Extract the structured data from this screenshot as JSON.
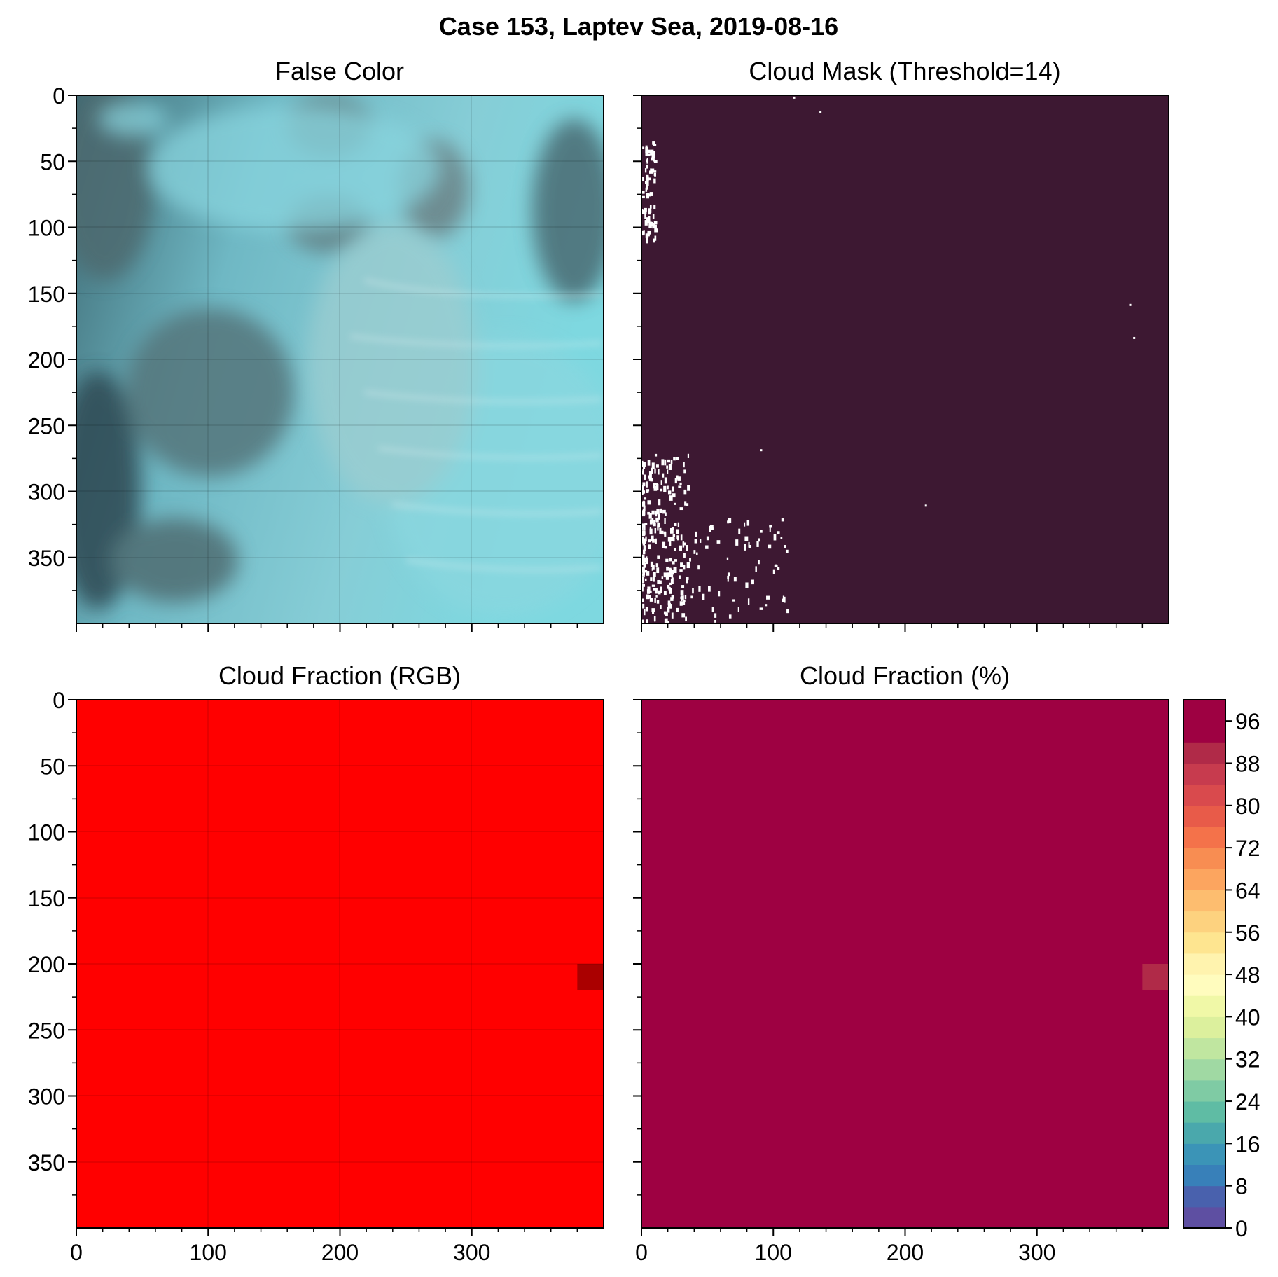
{
  "figure": {
    "suptitle": "Case 153, Laptev Sea, 2019-08-16"
  },
  "chart_data": [
    {
      "type": "image",
      "title": "False Color",
      "xlim": [
        0,
        400
      ],
      "ylim": [
        400,
        0
      ],
      "xticks": [
        0,
        100,
        200,
        300
      ],
      "yticks": [
        0,
        50,
        100,
        150,
        200,
        250,
        300,
        350
      ],
      "grid": true,
      "colors": {
        "ice": "#7fd0dc",
        "water": "#2e4a52",
        "cloud": "#9fc6ca"
      }
    },
    {
      "type": "heatmap",
      "title": "Cloud Mask (Threshold=14)",
      "xlim": [
        0,
        400
      ],
      "ylim": [
        400,
        0
      ],
      "xticks": [
        0,
        100,
        200,
        300
      ],
      "yticks": [
        0,
        50,
        100,
        150,
        200,
        250,
        300,
        350
      ],
      "grid": false,
      "colors": {
        "cloud": "#3d1832",
        "clear": "#ffffff"
      },
      "clear_regions": [
        {
          "x": [
            0,
            35
          ],
          "y": [
            270,
            400
          ],
          "density": "dense"
        },
        {
          "x": [
            35,
            110
          ],
          "y": [
            320,
            400
          ],
          "density": "sparse"
        },
        {
          "x": [
            0,
            10
          ],
          "y": [
            35,
            110
          ],
          "density": "sparse"
        }
      ]
    },
    {
      "type": "heatmap",
      "title": "Cloud Fraction (RGB)",
      "xlim": [
        0,
        400
      ],
      "ylim": [
        400,
        0
      ],
      "xticks": [
        0,
        100,
        200,
        300
      ],
      "yticks": [
        0,
        50,
        100,
        150,
        200,
        250,
        300,
        350
      ],
      "grid": true,
      "colors": {
        "fill": "#ff0000",
        "highlight": "#aa0000"
      },
      "cells": [
        {
          "x": [
            380,
            400
          ],
          "y": [
            200,
            220
          ],
          "color": "#aa0000"
        }
      ]
    },
    {
      "type": "heatmap",
      "title": "Cloud Fraction (%)",
      "xlim": [
        0,
        400
      ],
      "ylim": [
        400,
        0
      ],
      "xticks": [
        0,
        100,
        200,
        300
      ],
      "yticks": [
        0,
        50,
        100,
        150,
        200,
        250,
        300,
        350
      ],
      "grid": false,
      "value": 99,
      "cells": [
        {
          "x": [
            380,
            400
          ],
          "y": [
            200,
            220
          ],
          "value": 90
        }
      ],
      "colorbar": {
        "min": 0,
        "max": 100,
        "step": 4,
        "tick_labels": [
          "0",
          "8",
          "16",
          "24",
          "32",
          "40",
          "48",
          "56",
          "64",
          "72",
          "80",
          "88",
          "96"
        ],
        "colors": [
          "#5e4fa2",
          "#4961ad",
          "#3880b9",
          "#3b94b7",
          "#4aa8ac",
          "#5fbca4",
          "#7fcba4",
          "#a0d9a3",
          "#c0e6a0",
          "#dcf09d",
          "#f0f8a7",
          "#fffcbe",
          "#fff3ae",
          "#fee590",
          "#fdd27f",
          "#fdbd6f",
          "#fca55f",
          "#f88d52",
          "#f4724a",
          "#e85b49",
          "#d94a4d",
          "#c73b4e",
          "#b02a48",
          "#9e0142"
        ]
      }
    }
  ]
}
